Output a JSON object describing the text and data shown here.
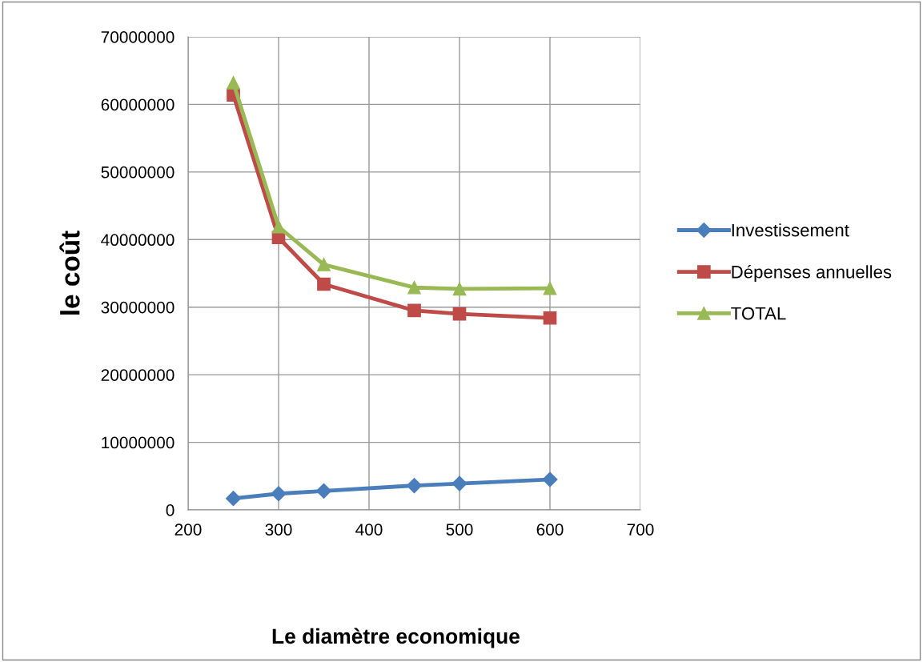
{
  "chart_data": {
    "type": "line",
    "xlabel": "Le diamètre economique",
    "ylabel": "le coût",
    "x": [
      250,
      300,
      350,
      450,
      500,
      600
    ],
    "series": [
      {
        "name": "Investissement",
        "color": "#4a7ebb",
        "marker": "diamond",
        "values": [
          1700000,
          2400000,
          2800000,
          3600000,
          3900000,
          4500000
        ]
      },
      {
        "name": "Dépenses annuelles",
        "color": "#be4b48",
        "marker": "square",
        "values": [
          61400000,
          40300000,
          33400000,
          29500000,
          29000000,
          28400000
        ]
      },
      {
        "name": "TOTAL",
        "color": "#98b954",
        "marker": "triangle",
        "values": [
          63200000,
          41900000,
          36300000,
          32900000,
          32700000,
          32800000
        ]
      }
    ],
    "xlim": [
      200,
      700
    ],
    "xticks": [
      200,
      300,
      400,
      500,
      600,
      700
    ],
    "ylim": [
      0,
      70000000
    ],
    "yticks": [
      0,
      10000000,
      20000000,
      30000000,
      40000000,
      50000000,
      60000000,
      70000000
    ],
    "grid": true,
    "legend": "right"
  }
}
